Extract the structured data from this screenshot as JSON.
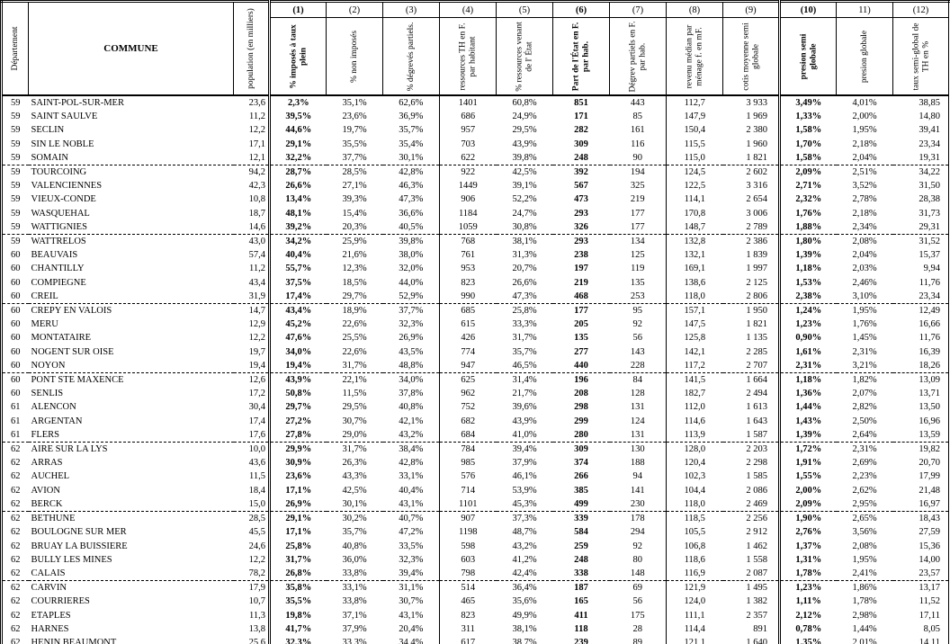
{
  "table": {
    "header": {
      "dept": "Département",
      "commune": "COMMUNE",
      "population": "population (en milliers)",
      "numbers": [
        "(1)",
        "(2)",
        "(3)",
        "(4)",
        "(5)",
        "(6)",
        "(7)",
        "(8)",
        "(9)",
        "(10)",
        "11)",
        "(12)"
      ],
      "labels": [
        "% imposés à taux plein",
        "% non imposés",
        "% dégrevés partiels.",
        "ressources TH en F. par habitant",
        "% ressources venant de l' État",
        "Part de l'État en F. par hab.",
        "Dégrev partiels en F. par hab.",
        "revenu médian par ménage f. en mF.",
        "cotis moyenne semi globale",
        "presion semi globale",
        "presion globale",
        "taux semi-global de TH en %"
      ]
    },
    "rows": [
      [
        "59",
        "SAINT-POL-SUR-MER",
        "23,6",
        "2,3%",
        "35,1%",
        "62,6%",
        "1401",
        "60,8%",
        "851",
        "443",
        "112,7",
        "3 933",
        "3,49%",
        "4,01%",
        "38,85"
      ],
      [
        "59",
        "SAINT SAULVE",
        "11,2",
        "39,5%",
        "23,6%",
        "36,9%",
        "686",
        "24,9%",
        "171",
        "85",
        "147,9",
        "1 969",
        "1,33%",
        "2,00%",
        "14,80"
      ],
      [
        "59",
        "SECLIN",
        "12,2",
        "44,6%",
        "19,7%",
        "35,7%",
        "957",
        "29,5%",
        "282",
        "161",
        "150,4",
        "2 380",
        "1,58%",
        "1,95%",
        "39,41"
      ],
      [
        "59",
        "SIN LE NOBLE",
        "17,1",
        "29,1%",
        "35,5%",
        "35,4%",
        "703",
        "43,9%",
        "309",
        "116",
        "115,5",
        "1 960",
        "1,70%",
        "2,18%",
        "23,34"
      ],
      [
        "59",
        "SOMAIN",
        "12,1",
        "32,2%",
        "37,7%",
        "30,1%",
        "622",
        "39,8%",
        "248",
        "90",
        "115,0",
        "1 821",
        "1,58%",
        "2,04%",
        "19,31"
      ],
      [
        "59",
        "TOURCOING",
        "94,2",
        "28,7%",
        "28,5%",
        "42,8%",
        "922",
        "42,5%",
        "392",
        "194",
        "124,5",
        "2 602",
        "2,09%",
        "2,51%",
        "34,22"
      ],
      [
        "59",
        "VALENCIENNES",
        "42,3",
        "26,6%",
        "27,1%",
        "46,3%",
        "1449",
        "39,1%",
        "567",
        "325",
        "122,5",
        "3 316",
        "2,71%",
        "3,52%",
        "31,50"
      ],
      [
        "59",
        "VIEUX-CONDE",
        "10,8",
        "13,4%",
        "39,3%",
        "47,3%",
        "906",
        "52,2%",
        "473",
        "219",
        "114,1",
        "2 654",
        "2,32%",
        "2,78%",
        "28,38"
      ],
      [
        "59",
        "WASQUEHAL",
        "18,7",
        "48,1%",
        "15,4%",
        "36,6%",
        "1184",
        "24,7%",
        "293",
        "177",
        "170,8",
        "3 006",
        "1,76%",
        "2,18%",
        "31,73"
      ],
      [
        "59",
        "WATTIGNIES",
        "14,6",
        "39,2%",
        "20,3%",
        "40,5%",
        "1059",
        "30,8%",
        "326",
        "177",
        "148,7",
        "2 789",
        "1,88%",
        "2,34%",
        "29,31"
      ],
      [
        "59",
        "WATTRELOS",
        "43,0",
        "34,2%",
        "25,9%",
        "39,8%",
        "768",
        "38,1%",
        "293",
        "134",
        "132,8",
        "2 386",
        "1,80%",
        "2,08%",
        "31,52"
      ],
      [
        "60",
        "BEAUVAIS",
        "57,4",
        "40,4%",
        "21,6%",
        "38,0%",
        "761",
        "31,3%",
        "238",
        "125",
        "132,1",
        "1 839",
        "1,39%",
        "2,04%",
        "15,37"
      ],
      [
        "60",
        "CHANTILLY",
        "11,2",
        "55,7%",
        "12,3%",
        "32,0%",
        "953",
        "20,7%",
        "197",
        "119",
        "169,1",
        "1 997",
        "1,18%",
        "2,03%",
        "9,94"
      ],
      [
        "60",
        "COMPIEGNE",
        "43,4",
        "37,5%",
        "18,5%",
        "44,0%",
        "823",
        "26,6%",
        "219",
        "135",
        "138,6",
        "2 125",
        "1,53%",
        "2,46%",
        "11,76"
      ],
      [
        "60",
        "CREIL",
        "31,9",
        "17,4%",
        "29,7%",
        "52,9%",
        "990",
        "47,3%",
        "468",
        "253",
        "118,0",
        "2 806",
        "2,38%",
        "3,10%",
        "23,34"
      ],
      [
        "60",
        "CREPY EN VALOIS",
        "14,7",
        "43,4%",
        "18,9%",
        "37,7%",
        "685",
        "25,8%",
        "177",
        "95",
        "157,1",
        "1 950",
        "1,24%",
        "1,95%",
        "12,49"
      ],
      [
        "60",
        "MERU",
        "12,9",
        "45,2%",
        "22,6%",
        "32,3%",
        "615",
        "33,3%",
        "205",
        "92",
        "147,5",
        "1 821",
        "1,23%",
        "1,76%",
        "16,66"
      ],
      [
        "60",
        "MONTATAIRE",
        "12,2",
        "47,6%",
        "25,5%",
        "26,9%",
        "426",
        "31,7%",
        "135",
        "56",
        "125,8",
        "1 135",
        "0,90%",
        "1,45%",
        "11,76"
      ],
      [
        "60",
        "NOGENT SUR OISE",
        "19,7",
        "34,0%",
        "22,6%",
        "43,5%",
        "774",
        "35,7%",
        "277",
        "143",
        "142,1",
        "2 285",
        "1,61%",
        "2,31%",
        "16,39"
      ],
      [
        "60",
        "NOYON",
        "19,4",
        "19,4%",
        "31,7%",
        "48,8%",
        "947",
        "46,5%",
        "440",
        "228",
        "117,2",
        "2 707",
        "2,31%",
        "3,21%",
        "18,26"
      ],
      [
        "60",
        "PONT STE MAXENCE",
        "12,6",
        "43,9%",
        "22,1%",
        "34,0%",
        "625",
        "31,4%",
        "196",
        "84",
        "141,5",
        "1 664",
        "1,18%",
        "1,82%",
        "13,09"
      ],
      [
        "60",
        "SENLIS",
        "17,2",
        "50,8%",
        "11,5%",
        "37,8%",
        "962",
        "21,7%",
        "208",
        "128",
        "182,7",
        "2 494",
        "1,36%",
        "2,07%",
        "13,71"
      ],
      [
        "61",
        "ALENCON",
        "30,4",
        "29,7%",
        "29,5%",
        "40,8%",
        "752",
        "39,6%",
        "298",
        "131",
        "112,0",
        "1 613",
        "1,44%",
        "2,82%",
        "13,50"
      ],
      [
        "61",
        "ARGENTAN",
        "17,4",
        "27,2%",
        "30,7%",
        "42,1%",
        "682",
        "43,9%",
        "299",
        "124",
        "114,6",
        "1 643",
        "1,43%",
        "2,50%",
        "16,96"
      ],
      [
        "61",
        "FLERS",
        "17,6",
        "27,8%",
        "29,0%",
        "43,2%",
        "684",
        "41,0%",
        "280",
        "131",
        "113,9",
        "1 587",
        "1,39%",
        "2,64%",
        "13,59"
      ],
      [
        "62",
        "AIRE SUR LA LYS",
        "10,0",
        "29,9%",
        "31,7%",
        "38,4%",
        "784",
        "39,4%",
        "309",
        "130",
        "128,0",
        "2 203",
        "1,72%",
        "2,31%",
        "19,82"
      ],
      [
        "62",
        "ARRAS",
        "43,6",
        "30,9%",
        "26,3%",
        "42,8%",
        "985",
        "37,9%",
        "374",
        "188",
        "120,4",
        "2 298",
        "1,91%",
        "2,69%",
        "20,70"
      ],
      [
        "62",
        "AUCHEL",
        "11,5",
        "23,6%",
        "43,3%",
        "33,1%",
        "576",
        "46,1%",
        "266",
        "94",
        "102,3",
        "1 585",
        "1,55%",
        "2,23%",
        "17,99"
      ],
      [
        "62",
        "AVION",
        "18,4",
        "17,1%",
        "42,5%",
        "40,4%",
        "714",
        "53,9%",
        "385",
        "141",
        "104,4",
        "2 086",
        "2,00%",
        "2,62%",
        "21,48"
      ],
      [
        "62",
        "BERCK",
        "15,0",
        "26,9%",
        "30,1%",
        "43,1%",
        "1101",
        "45,3%",
        "499",
        "230",
        "118,0",
        "2 469",
        "2,09%",
        "2,95%",
        "16,97"
      ],
      [
        "62",
        "BETHUNE",
        "28,5",
        "29,1%",
        "30,2%",
        "40,7%",
        "907",
        "37,3%",
        "339",
        "178",
        "118,5",
        "2 256",
        "1,90%",
        "2,65%",
        "18,43"
      ],
      [
        "62",
        "BOULOGNE SUR MER",
        "45,5",
        "17,1%",
        "35,7%",
        "47,2%",
        "1198",
        "48,7%",
        "584",
        "294",
        "105,5",
        "2 912",
        "2,76%",
        "3,56%",
        "27,59"
      ],
      [
        "62",
        "BRUAY LA BUISSIERE",
        "24,6",
        "25,8%",
        "40,8%",
        "33,5%",
        "598",
        "43,2%",
        "259",
        "92",
        "106,8",
        "1 462",
        "1,37%",
        "2,08%",
        "15,36"
      ],
      [
        "62",
        "BULLY LES MINES",
        "12,2",
        "31,7%",
        "36,0%",
        "32,3%",
        "603",
        "41,2%",
        "248",
        "80",
        "118,6",
        "1 558",
        "1,31%",
        "1,95%",
        "14,00"
      ],
      [
        "62",
        "CALAIS",
        "78,2",
        "26,8%",
        "33,8%",
        "39,4%",
        "798",
        "42,4%",
        "338",
        "148",
        "116,9",
        "2 087",
        "1,78%",
        "2,41%",
        "23,57"
      ],
      [
        "62",
        "CARVIN",
        "17,9",
        "35,8%",
        "33,1%",
        "31,1%",
        "514",
        "36,4%",
        "187",
        "69",
        "121,9",
        "1 495",
        "1,23%",
        "1,86%",
        "13,17"
      ],
      [
        "62",
        "COURRIERES",
        "10,7",
        "35,5%",
        "33,8%",
        "30,7%",
        "465",
        "35,6%",
        "165",
        "56",
        "124,0",
        "1 382",
        "1,11%",
        "1,78%",
        "11,52"
      ],
      [
        "62",
        "ETAPLES",
        "11,3",
        "19,8%",
        "37,1%",
        "43,1%",
        "823",
        "49,9%",
        "411",
        "175",
        "111,1",
        "2 357",
        "2,12%",
        "2,98%",
        "17,11"
      ],
      [
        "62",
        "HARNES",
        "13,8",
        "41,7%",
        "37,9%",
        "20,4%",
        "311",
        "38,1%",
        "118",
        "28",
        "114,4",
        "891",
        "0,78%",
        "1,44%",
        "8,05"
      ],
      [
        "62",
        "HENIN BEAUMONT",
        "25,6",
        "32,3%",
        "33,3%",
        "34,4%",
        "617",
        "38,7%",
        "239",
        "89",
        "121,1",
        "1 640",
        "1,35%",
        "2,01%",
        "14,11"
      ]
    ]
  }
}
